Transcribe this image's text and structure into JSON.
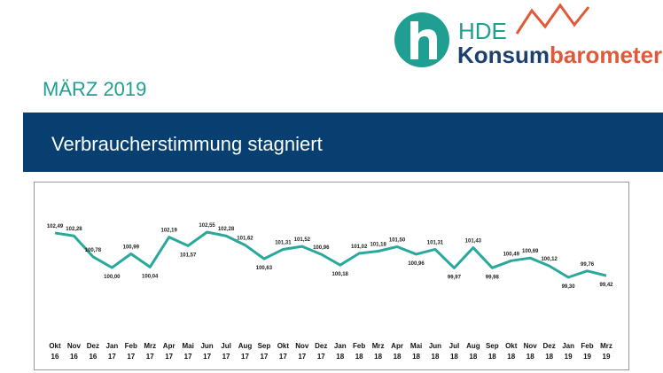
{
  "header": {
    "logo_brand": "HDE",
    "logo_word_1": "Konsum",
    "logo_word_2": "barometer",
    "date": "MÄRZ 2019",
    "banner": "Verbraucherstimmung stagniert"
  },
  "chart_data": {
    "type": "line",
    "color": "#2aa89b",
    "categories": [
      "Okt\n16",
      "Nov\n16",
      "Dez\n16",
      "Jan\n17",
      "Feb\n17",
      "Mrz\n17",
      "Apr\n17",
      "Mai\n17",
      "Jun\n17",
      "Jul\n17",
      "Aug\n17",
      "Sep\n17",
      "Okt\n17",
      "Nov\n17",
      "Dez\n17",
      "Jan\n18",
      "Feb\n18",
      "Mrz\n18",
      "Apr\n18",
      "Mai\n18",
      "Jun\n18",
      "Jul\n18",
      "Aug\n18",
      "Sep\n18",
      "Okt\n18",
      "Nov\n18",
      "Dez\n18",
      "Jan\n19",
      "Feb\n19",
      "Mrz\n19"
    ],
    "values": [
      102.49,
      102.28,
      100.78,
      100.0,
      100.99,
      100.04,
      102.19,
      101.57,
      102.55,
      102.28,
      101.62,
      100.63,
      101.31,
      101.52,
      100.96,
      100.18,
      101.02,
      101.18,
      101.5,
      100.96,
      101.31,
      99.97,
      101.43,
      99.98,
      100.49,
      100.69,
      100.12,
      99.3,
      99.76,
      99.42
    ],
    "value_labels": [
      "102,49",
      "102,28",
      "100,78",
      "100,00",
      "100,99",
      "100,04",
      "102,19",
      "101,57",
      "102,55",
      "102,28",
      "101,62",
      "100,63",
      "101,31",
      "101,52",
      "100,96",
      "100,18",
      "101,02",
      "101,18",
      "101,50",
      "100,96",
      "101,31",
      "99,97",
      "101,43",
      "99,98",
      "100,49",
      "100,69",
      "100,12",
      "99,30",
      "99,76",
      "99,42"
    ]
  }
}
